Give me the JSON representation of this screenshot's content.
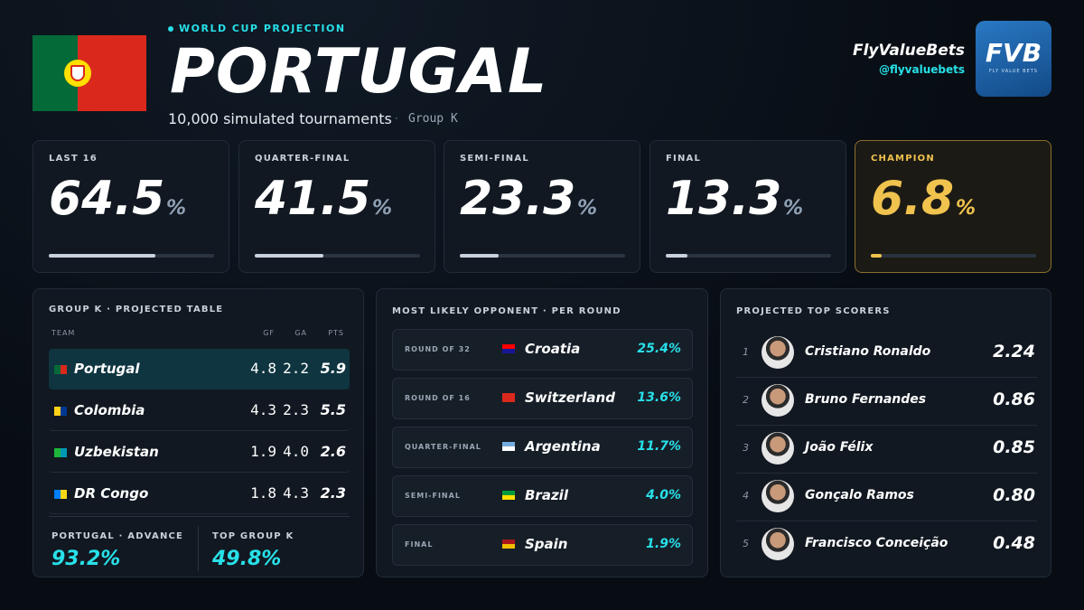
{
  "header": {
    "kicker": "WORLD CUP PROJECTION",
    "title": "PORTUGAL",
    "subtitle": "10,000 simulated tournaments",
    "separator": "·",
    "group": "Group K"
  },
  "brand": {
    "name": "FlyValueBets",
    "handle": "@flyvaluebets",
    "logo": "FVB",
    "logo_sub": "FLY VALUE BETS"
  },
  "stages": [
    {
      "label": "LAST 16",
      "value": 64.5,
      "unit": "%"
    },
    {
      "label": "QUARTER-FINAL",
      "value": 41.5,
      "unit": "%"
    },
    {
      "label": "SEMI-FINAL",
      "value": 23.3,
      "unit": "%"
    },
    {
      "label": "FINAL",
      "value": 13.3,
      "unit": "%"
    },
    {
      "label": "CHAMPION",
      "value": 6.8,
      "unit": "%"
    }
  ],
  "group_table": {
    "title": "GROUP K · PROJECTED TABLE",
    "columns": [
      "TEAM",
      "GF",
      "GA",
      "PTS"
    ],
    "rows": [
      [
        "Portugal",
        "4.8",
        "2.2",
        "5.9"
      ],
      [
        "Colombia",
        "4.3",
        "2.3",
        "5.5"
      ],
      [
        "Uzbekistan",
        "1.9",
        "4.0",
        "2.6"
      ],
      [
        "DR Congo",
        "1.8",
        "4.3",
        "2.3"
      ]
    ]
  },
  "summary": [
    {
      "label": "PORTUGAL · ADVANCE",
      "value": "93.2%"
    },
    {
      "label": "TOP GROUP K",
      "value": "49.8%"
    }
  ],
  "opponents": {
    "title": "MOST LIKELY OPPONENT · PER ROUND",
    "rows": [
      {
        "round": "ROUND OF 32",
        "team": "Croatia",
        "prob": "25.4%"
      },
      {
        "round": "ROUND OF 16",
        "team": "Switzerland",
        "prob": "13.6%"
      },
      {
        "round": "QUARTER-FINAL",
        "team": "Argentina",
        "prob": "11.7%"
      },
      {
        "round": "SEMI-FINAL",
        "team": "Brazil",
        "prob": "4.0%"
      },
      {
        "round": "FINAL",
        "team": "Spain",
        "prob": "1.9%"
      }
    ]
  },
  "scorers": {
    "title": "PROJECTED TOP SCORERS",
    "rows": [
      {
        "rank": "1",
        "name": "Cristiano Ronaldo",
        "value": "2.24"
      },
      {
        "rank": "2",
        "name": "Bruno Fernandes",
        "value": "0.86"
      },
      {
        "rank": "3",
        "name": "João Félix",
        "value": "0.85"
      },
      {
        "rank": "4",
        "name": "Gonçalo Ramos",
        "value": "0.80"
      },
      {
        "rank": "5",
        "name": "Francisco Conceição",
        "value": "0.48"
      }
    ]
  }
}
